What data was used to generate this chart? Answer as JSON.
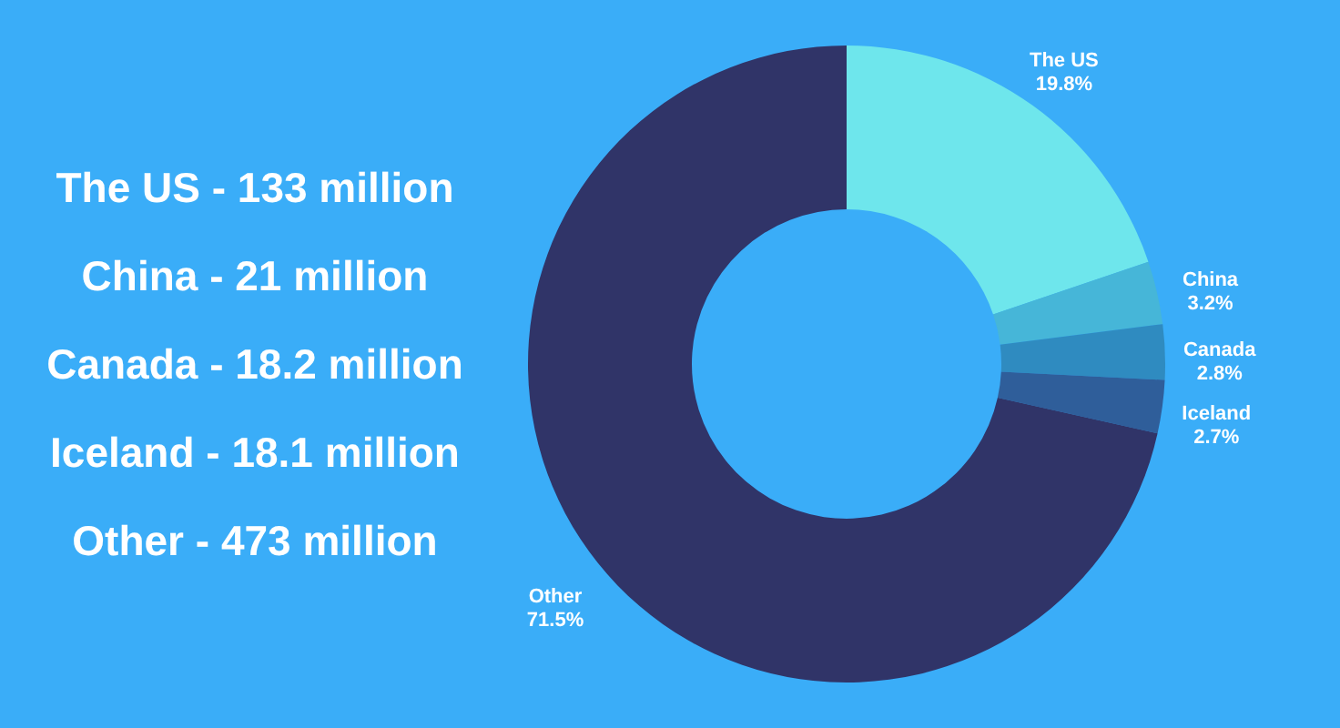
{
  "chart_data": {
    "type": "donut",
    "categories": [
      "The US",
      "China",
      "Canada",
      "Iceland",
      "Other"
    ],
    "values": [
      19.8,
      3.2,
      2.8,
      2.7,
      71.5
    ],
    "colors": [
      "#6ee6ec",
      "#46b6d8",
      "#2f8bc0",
      "#2f5e9a",
      "#303468"
    ],
    "value_labels": [
      "19.8%",
      "3.2%",
      "2.8%",
      "2.7%",
      "71.5%"
    ],
    "annotations": [
      "The US - 133 million",
      "China - 21 million",
      "Canada - 18.2 million",
      "Iceland - 18.1 million",
      "Other - 473 million"
    ]
  }
}
